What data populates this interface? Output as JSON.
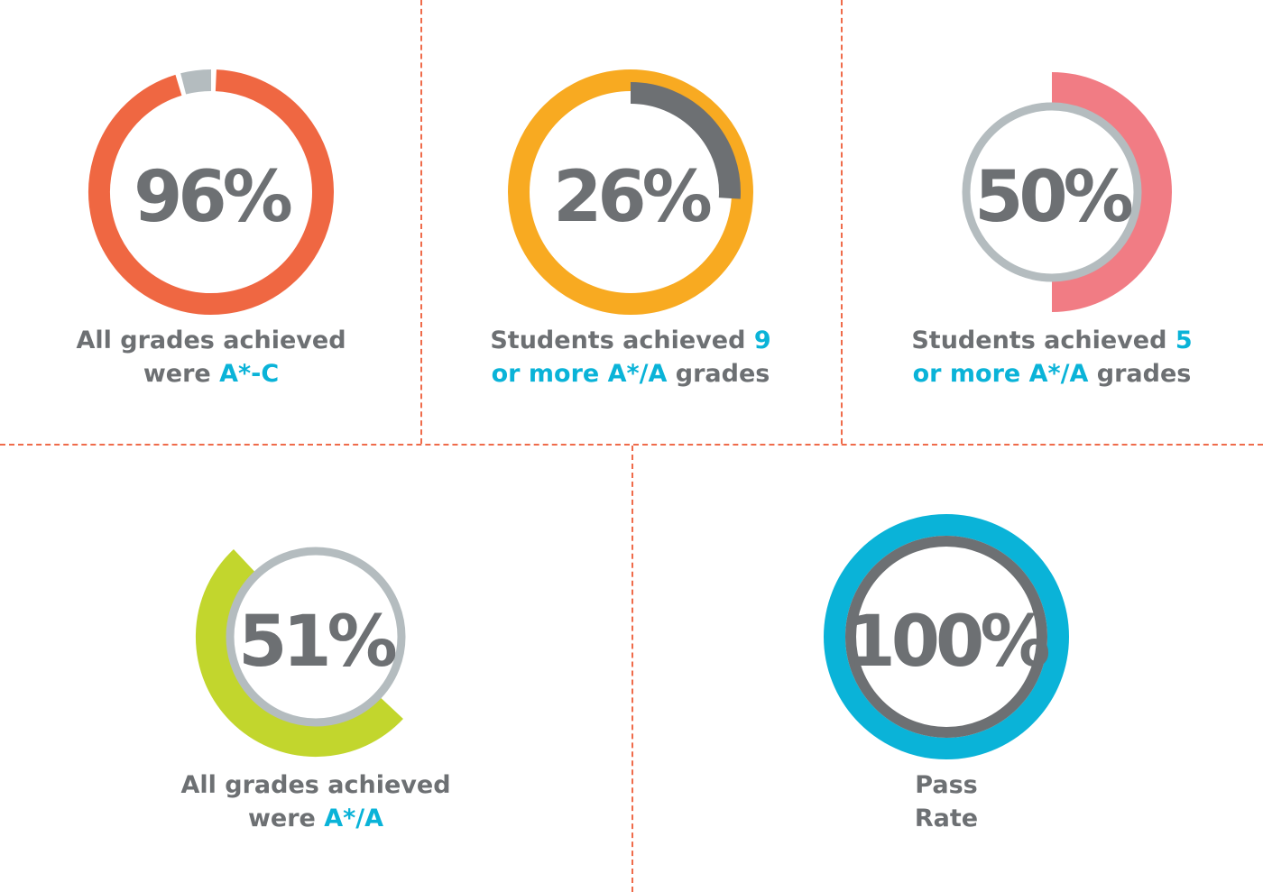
{
  "colors": {
    "divider": "#ef6b4a",
    "text": "#6d7073",
    "highlight": "#0ab3d8",
    "track_grey": "#b4bcbf",
    "dark_grey": "#6d7073"
  },
  "chart_data": [
    {
      "type": "pie",
      "value": 96,
      "label": "96%",
      "caption": [
        [
          {
            "t": "All grades achieved",
            "hl": false
          }
        ],
        [
          {
            "t": "were ",
            "hl": false
          },
          {
            "t": "A*-C",
            "hl": true
          }
        ]
      ],
      "colors": {
        "main": "#ef6742",
        "rest": "#b4bcbf"
      }
    },
    {
      "type": "pie",
      "value": 26,
      "label": "26%",
      "caption": [
        [
          {
            "t": "Students achieved ",
            "hl": false
          },
          {
            "t": "9",
            "hl": true
          }
        ],
        [
          {
            "t": "or more A*/A",
            "hl": true
          },
          {
            "t": " grades",
            "hl": false
          }
        ]
      ],
      "colors": {
        "main": "#6d7073",
        "rest": "#f8aa21"
      }
    },
    {
      "type": "pie",
      "value": 50,
      "label": "50%",
      "caption": [
        [
          {
            "t": "Students achieved ",
            "hl": false
          },
          {
            "t": "5",
            "hl": true
          }
        ],
        [
          {
            "t": "or more A*/A",
            "hl": true
          },
          {
            "t": " grades",
            "hl": false
          }
        ]
      ],
      "colors": {
        "main": "#f17c84",
        "rest": "#b4bcbf"
      }
    },
    {
      "type": "pie",
      "value": 51,
      "label": "51%",
      "caption": [
        [
          {
            "t": "All grades achieved",
            "hl": false
          }
        ],
        [
          {
            "t": "were ",
            "hl": false
          },
          {
            "t": "A*/A",
            "hl": true
          }
        ]
      ],
      "colors": {
        "main": "#c2d62d",
        "rest": "#b4bcbf"
      }
    },
    {
      "type": "pie",
      "value": 100,
      "label": "100%",
      "caption": [
        [
          {
            "t": "Pass",
            "hl": false
          }
        ],
        [
          {
            "t": "Rate",
            "hl": false
          }
        ]
      ],
      "colors": {
        "main": "#0ab3d8",
        "rest": "#6d7073"
      }
    }
  ]
}
